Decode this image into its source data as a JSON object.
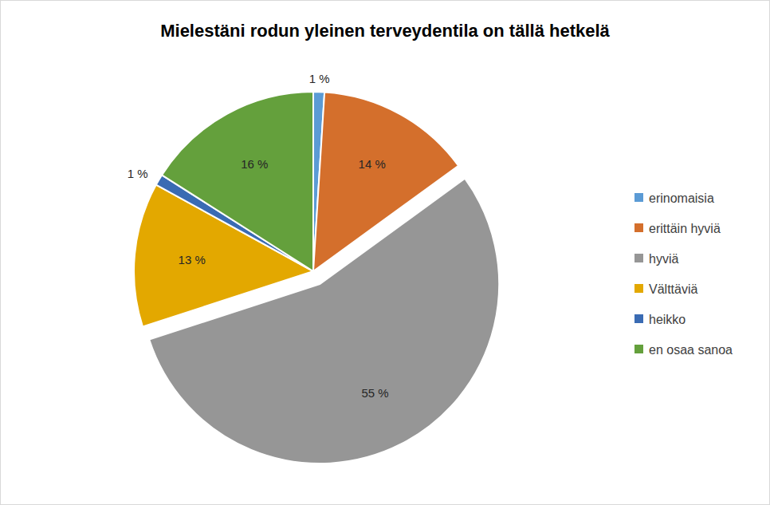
{
  "chart_data": {
    "type": "pie",
    "title": "Mielestäni rodun yleinen terveydentila on tällä hetkelä",
    "categories": [
      "erinomaisia",
      "erittäin hyviä",
      "hyviä",
      "Välttäviä",
      "heikko",
      "en osaa sanoa"
    ],
    "values": [
      1,
      14,
      55,
      13,
      1,
      16
    ],
    "value_labels": [
      "1 %",
      "14 %",
      "55 %",
      "13 %",
      "1 %",
      "16 %"
    ],
    "colors": [
      "#5b9bd5",
      "#d46f2c",
      "#969696",
      "#e3a800",
      "#3a6bb3",
      "#64a03c"
    ],
    "data_labels": true,
    "legend": "right"
  }
}
